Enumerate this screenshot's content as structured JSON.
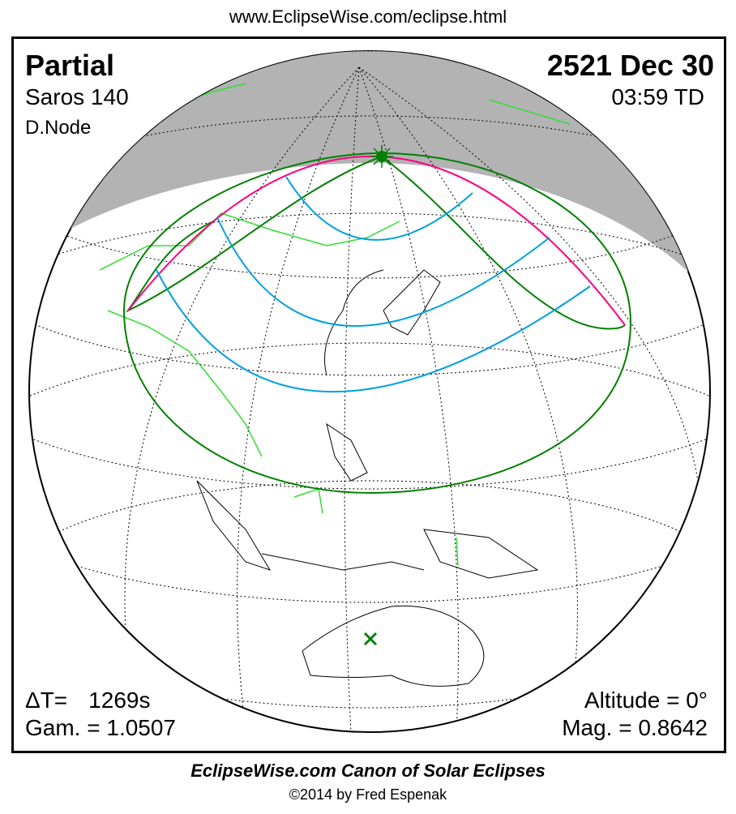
{
  "header": {
    "url": "www.EclipseWise.com/eclipse.html"
  },
  "eclipse": {
    "type": "Partial",
    "date": "2521 Dec 30",
    "saros": "Saros 140",
    "time": "03:59 TD",
    "node": "D.Node",
    "delta_t_label": "ΔT=",
    "delta_t_value": "1269s",
    "altitude": "Altitude =  0°",
    "gamma": "Gam. = 1.0507",
    "magnitude": "Mag. = 0.8642"
  },
  "footer": {
    "title": "EclipseWise.com Canon of Solar Eclipses",
    "copyright": "©2014 by Fred Espenak"
  },
  "colors": {
    "night_shade": "#b3b3b3",
    "penumbra_limits": "#008000",
    "max_eclipse_curve": "#ff0080",
    "magnitude_curves": "#00a0e0",
    "borders": "#33dd33"
  },
  "markers": {
    "greatest_eclipse": "star-dot-icon",
    "subsolar": "x-mark-icon"
  }
}
